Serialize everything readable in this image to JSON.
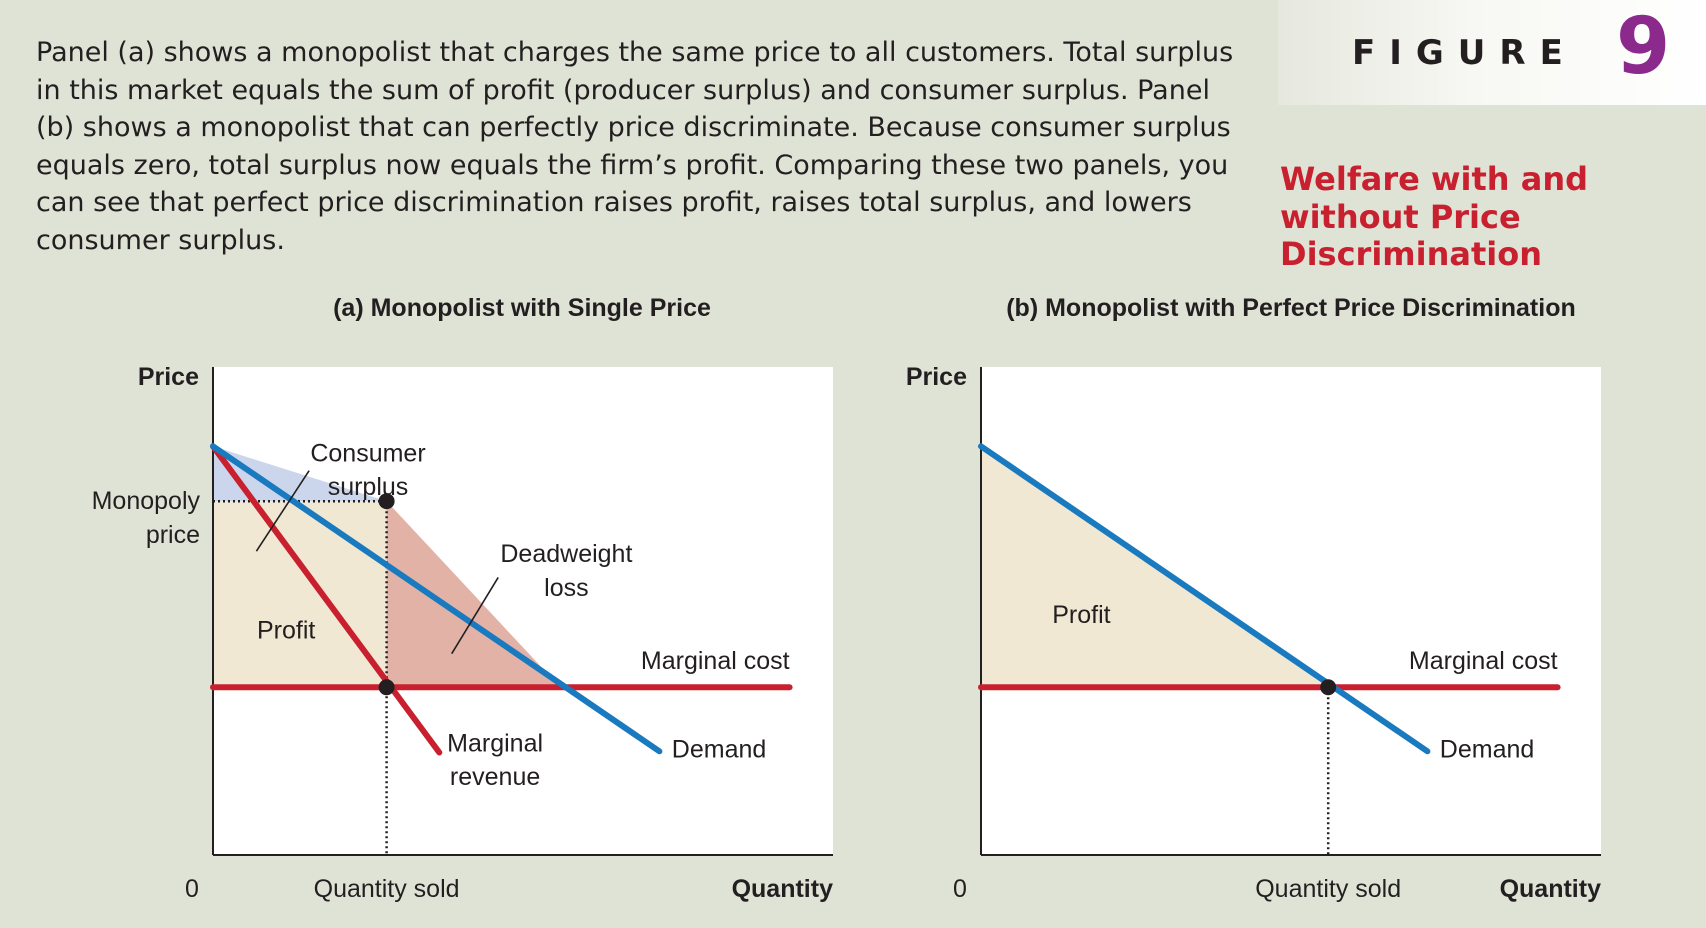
{
  "caption": "Panel (a) shows a monopolist that charges the same price to all customers. Total surplus in this market equals the sum of profit (producer surplus) and consumer surplus. Panel (b) shows a monopolist that can perfectly price discriminate. Because consumer surplus equals zero, total surplus now equals the firm’s profit. Comparing these two panels, you can see that perfect price discrimination raises profit, raises total surplus, and lowers consumer surplus.",
  "figure": {
    "word": "FIGURE",
    "number": "9",
    "title": "Welfare with and without Price Discrimination",
    "number_color": "#8b2a8c",
    "title_color": "#c8202f"
  },
  "colors": {
    "demand": "#1a7abf",
    "marginal": "#c8202f",
    "consumer_surplus": "#cbd6ec",
    "profit": "#f0e8d2",
    "deadweight_loss": "#e3b2a6",
    "plot_bg": "#ffffff"
  },
  "chart_data": [
    {
      "type": "line",
      "title": "(a) Monopolist with Single Price",
      "ylabel": "Price",
      "xlabel": "Quantity",
      "origin_label": "0",
      "x_ticks": [
        {
          "label": "Quantity sold",
          "x": 2.8
        }
      ],
      "y_ticks": [
        {
          "label": "Monopoly price",
          "y": 5.8
        }
      ],
      "xlim": [
        0,
        10
      ],
      "ylim": [
        0,
        8
      ],
      "series": [
        {
          "name": "Demand",
          "points": [
            [
              0,
              6.7
            ],
            [
              7.2,
              1.7
            ]
          ],
          "color": "demand"
        },
        {
          "name": "Marginal revenue",
          "points": [
            [
              0,
              6.7
            ],
            [
              3.65,
              1.68
            ]
          ],
          "color": "marginal"
        },
        {
          "name": "Marginal cost",
          "points": [
            [
              0,
              2.75
            ],
            [
              9.3,
              2.75
            ]
          ],
          "color": "marginal"
        }
      ],
      "areas": [
        {
          "name": "Consumer surplus",
          "points": [
            [
              0,
              6.7
            ],
            [
              2.8,
              5.8
            ],
            [
              0,
              5.8
            ]
          ],
          "color": "consumer_surplus"
        },
        {
          "name": "Profit",
          "points": [
            [
              0,
              5.8
            ],
            [
              2.8,
              5.8
            ],
            [
              2.8,
              2.75
            ],
            [
              0,
              2.75
            ]
          ],
          "color": "profit"
        },
        {
          "name": "Deadweight loss",
          "points": [
            [
              2.8,
              5.8
            ],
            [
              5.6,
              2.75
            ],
            [
              2.8,
              2.75
            ]
          ],
          "color": "deadweight_loss"
        }
      ],
      "points": [
        [
          2.8,
          5.8
        ],
        [
          2.8,
          2.75
        ]
      ],
      "dotted_lines": [
        [
          [
            0,
            5.8
          ],
          [
            2.8,
            5.8
          ]
        ],
        [
          [
            2.8,
            5.8
          ],
          [
            2.8,
            0
          ]
        ]
      ],
      "annotations": [
        {
          "text": "Consumer",
          "x": 2.5,
          "y": 6.45,
          "anchor": "middle"
        },
        {
          "text": "surplus",
          "x": 2.5,
          "y": 5.9,
          "anchor": "middle"
        },
        {
          "text": "Profit",
          "x": 1.18,
          "y": 3.55,
          "anchor": "middle"
        },
        {
          "text": "Deadweight",
          "x": 5.7,
          "y": 4.8,
          "anchor": "middle"
        },
        {
          "text": "loss",
          "x": 5.7,
          "y": 4.25,
          "anchor": "middle"
        },
        {
          "text": "Marginal cost",
          "x": 9.3,
          "y": 3.05,
          "anchor": "end"
        },
        {
          "text": "Marginal",
          "x": 4.55,
          "y": 1.7,
          "anchor": "middle"
        },
        {
          "text": "revenue",
          "x": 4.55,
          "y": 1.15,
          "anchor": "middle"
        },
        {
          "text": "Demand",
          "x": 7.4,
          "y": 1.6,
          "anchor": "start"
        }
      ],
      "leaders": [
        [
          [
            1.55,
            6.3
          ],
          [
            0.7,
            4.98
          ]
        ],
        [
          [
            4.6,
            4.55
          ],
          [
            3.85,
            3.3
          ]
        ]
      ]
    },
    {
      "type": "line",
      "title": "(b) Monopolist with Perfect Price Discrimination",
      "ylabel": "Price",
      "xlabel": "Quantity",
      "origin_label": "0",
      "x_ticks": [
        {
          "label": "Quantity sold",
          "x": 5.6
        }
      ],
      "y_ticks": [],
      "xlim": [
        0,
        10
      ],
      "ylim": [
        0,
        8
      ],
      "series": [
        {
          "name": "Demand",
          "points": [
            [
              0,
              6.7
            ],
            [
              7.2,
              1.7
            ]
          ],
          "color": "demand"
        },
        {
          "name": "Marginal cost",
          "points": [
            [
              0,
              2.75
            ],
            [
              9.3,
              2.75
            ]
          ],
          "color": "marginal"
        }
      ],
      "areas": [
        {
          "name": "Profit",
          "points": [
            [
              0,
              6.7
            ],
            [
              5.6,
              2.75
            ],
            [
              0,
              2.75
            ]
          ],
          "color": "profit"
        }
      ],
      "points": [
        [
          5.6,
          2.75
        ]
      ],
      "dotted_lines": [
        [
          [
            5.6,
            2.75
          ],
          [
            5.6,
            0
          ]
        ]
      ],
      "annotations": [
        {
          "text": "Profit",
          "x": 1.62,
          "y": 3.8,
          "anchor": "middle"
        },
        {
          "text": "Marginal cost",
          "x": 9.3,
          "y": 3.05,
          "anchor": "end"
        },
        {
          "text": "Demand",
          "x": 7.4,
          "y": 1.6,
          "anchor": "start"
        }
      ],
      "leaders": []
    }
  ]
}
